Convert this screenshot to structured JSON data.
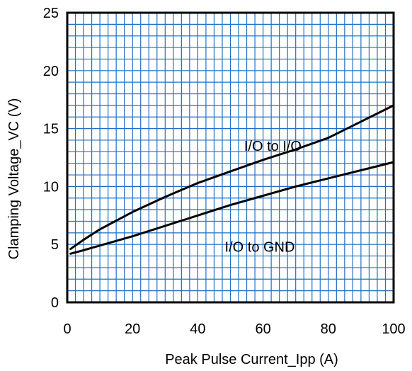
{
  "chart_data": {
    "type": "line",
    "xlabel": "Peak Pulse Current_Ipp  (A)",
    "ylabel": "Clamping Voltage_VC (V)",
    "xlim": [
      0,
      100
    ],
    "ylim": [
      0,
      25
    ],
    "xticks": [
      "0",
      "20",
      "40",
      "60",
      "80",
      "100"
    ],
    "yticks": [
      "0",
      "5",
      "10",
      "15",
      "20",
      "25"
    ],
    "grid": true,
    "grid_color": "#1f6fc6",
    "line_color": "#000000",
    "series": [
      {
        "name": "I/O to I/O",
        "x": [
          1,
          5,
          10,
          20,
          30,
          40,
          50,
          60,
          70,
          80,
          90,
          100
        ],
        "y": [
          4.6,
          5.4,
          6.3,
          7.8,
          9.1,
          10.3,
          11.3,
          12.3,
          13.2,
          14.2,
          15.6,
          17.0
        ]
      },
      {
        "name": "I/O to GND",
        "x": [
          1,
          5,
          10,
          20,
          30,
          40,
          50,
          60,
          70,
          80,
          90,
          100
        ],
        "y": [
          4.2,
          4.5,
          4.9,
          5.7,
          6.6,
          7.5,
          8.4,
          9.2,
          10.0,
          10.7,
          11.4,
          12.1
        ]
      }
    ],
    "annotations": [
      {
        "text": "I/O to I/O",
        "x": 63,
        "y": 13.5
      },
      {
        "text": "I/O to GND",
        "x": 59,
        "y": 4.8
      }
    ]
  }
}
